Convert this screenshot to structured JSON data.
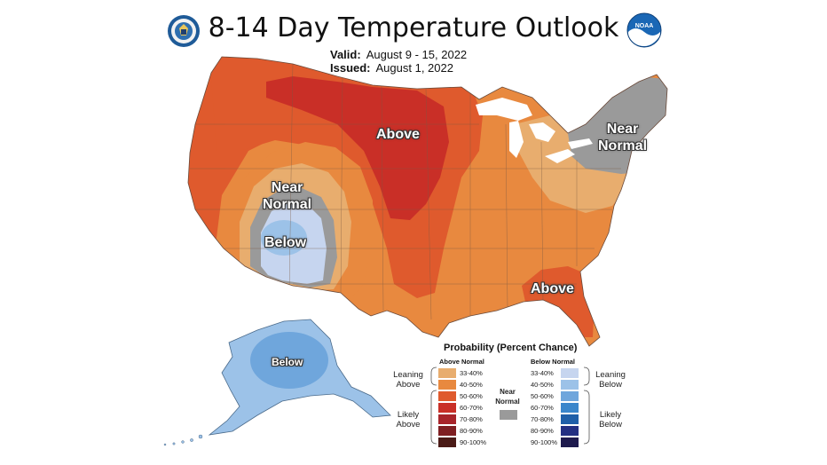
{
  "header": {
    "title": "8-14 Day Temperature Outlook",
    "valid_label": "Valid:",
    "valid_value": "August 9 - 15, 2022",
    "issued_label": "Issued:",
    "issued_value": "August 1, 2022"
  },
  "logos": {
    "left": "commerce-seal-icon",
    "right": "noaa-logo-icon",
    "noaa_text": "NOAA"
  },
  "map": {
    "labels": {
      "above_north": "Above",
      "above_southeast": "Above",
      "near_normal_west_line1": "Near",
      "near_normal_west_line2": "Normal",
      "below_west": "Below",
      "near_normal_northeast_line1": "Near",
      "near_normal_northeast_line2": "Normal",
      "below_alaska": "Below"
    }
  },
  "legend": {
    "title": "Probability (Percent Chance)",
    "above_header": "Above Normal",
    "below_header": "Below Normal",
    "leaning_above": "Leaning Above",
    "likely_above": "Likely Above",
    "near_normal": "Near Normal",
    "leaning_below": "Leaning Below",
    "likely_below": "Likely Below",
    "above_rows": [
      {
        "label": "33-40%",
        "color": "#e8ad6e"
      },
      {
        "label": "40-50%",
        "color": "#e8893f"
      },
      {
        "label": "50-60%",
        "color": "#df5a2d"
      },
      {
        "label": "60-70%",
        "color": "#c92f27"
      },
      {
        "label": "70-80%",
        "color": "#a8242a"
      },
      {
        "label": "80-90%",
        "color": "#7f1f22"
      },
      {
        "label": "90-100%",
        "color": "#4b1b17"
      }
    ],
    "near_color": "#9a9a9a",
    "below_rows": [
      {
        "label": "33-40%",
        "color": "#c6d5ef"
      },
      {
        "label": "40-50%",
        "color": "#9cc2e8"
      },
      {
        "label": "50-60%",
        "color": "#6fa6dc"
      },
      {
        "label": "60-70%",
        "color": "#3a86cb"
      },
      {
        "label": "70-80%",
        "color": "#1f5fa8"
      },
      {
        "label": "80-90%",
        "color": "#232f82"
      },
      {
        "label": "90-100%",
        "color": "#1e1a4d"
      }
    ]
  }
}
